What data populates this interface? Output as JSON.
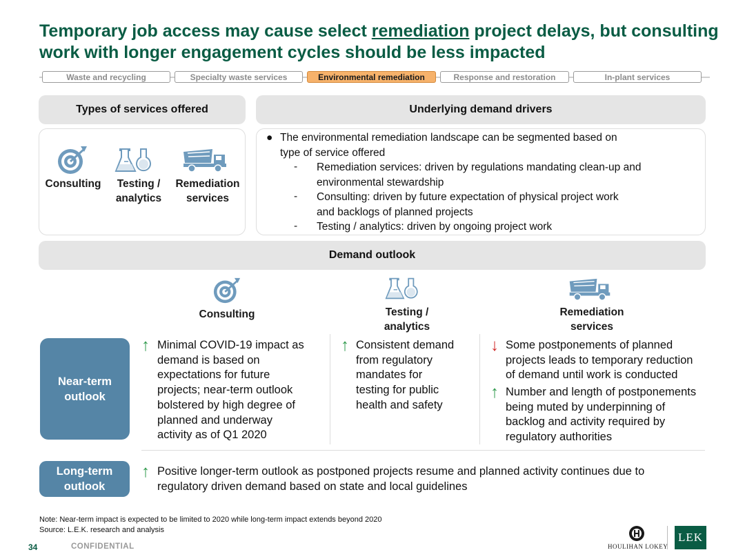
{
  "title": {
    "part1": "Temporary job access may cause select ",
    "underlined": "remediation",
    "part2": " project delays, but consulting work with longer engagement cycles should be less impacted"
  },
  "tabs": [
    {
      "label": "Waste and recycling",
      "active": false
    },
    {
      "label": "Specialty waste services",
      "active": false
    },
    {
      "label": "Environmental remediation",
      "active": true
    },
    {
      "label": "Response and restoration",
      "active": false
    },
    {
      "label": "In-plant services",
      "active": false
    }
  ],
  "services": {
    "header": "Types of services offered",
    "items": [
      {
        "icon": "target-icon",
        "label1": "Consulting",
        "label2": ""
      },
      {
        "icon": "lab-flask-icon",
        "label1": "Testing /",
        "label2": "analytics"
      },
      {
        "icon": "dump-truck-icon",
        "label1": "Remediation",
        "label2": "services"
      }
    ]
  },
  "drivers": {
    "header": "Underlying demand drivers",
    "bullet_line1": "The environmental remediation landscape can be segmented based on",
    "bullet_line2": "type of service offered",
    "subs": [
      {
        "line1": "Remediation services: driven by regulations mandating clean-up and",
        "line2": "environmental stewardship"
      },
      {
        "line1": "Consulting: driven by future expectation of physical project work",
        "line2": "and backlogs of planned projects"
      },
      {
        "line1": "Testing / analytics: driven by ongoing project work",
        "line2": ""
      }
    ]
  },
  "outlook": {
    "header": "Demand outlook",
    "columns": [
      {
        "icon": "target-icon",
        "line1": "Consulting",
        "line2": ""
      },
      {
        "icon": "lab-flask-icon",
        "line1": "Testing /",
        "line2": "analytics"
      },
      {
        "icon": "dump-truck-icon",
        "line1": "Remediation",
        "line2": "services"
      }
    ],
    "near_term": {
      "label1": "Near-term",
      "label2": "outlook",
      "consulting": [
        "Minimal COVID-19 impact as",
        "demand is based on",
        "expectations for future",
        "projects; near-term outlook",
        "bolstered by high degree of",
        "planned and underway",
        "activity as of Q1 2020"
      ],
      "testing": [
        "Consistent demand",
        "from regulatory",
        "mandates for",
        "testing for public",
        "health and safety"
      ],
      "remediation_down": [
        "Some postponements of planned",
        "projects leads to temporary reduction",
        "of demand until work is conducted"
      ],
      "remediation_up": [
        "Number and length of postponements",
        "being muted by underpinning of",
        "backlog and activity required by",
        "regulatory authorities"
      ]
    },
    "long_term": {
      "label1": "Long-term",
      "label2": "outlook",
      "lines": [
        "Positive longer-term outlook as postponed projects resume and planned activity continues due to",
        "regulatory driven demand based on state and local guidelines"
      ]
    }
  },
  "notes": {
    "note": "Note: Near-term impact is expected to be limited to 2020 while long-term impact extends beyond 2020",
    "source": "Source:  L.E.K. research and analysis"
  },
  "footer": {
    "page_number": "34",
    "confidential": "CONFIDENTIAL",
    "logo1": "HOULIHAN LOKEY",
    "logo2": "LEK"
  },
  "colors": {
    "title_green": "#0a5c44",
    "active_tab": "#f6b26b",
    "outlook_blue": "#5585a6",
    "arrow_up": "#2f9a4c",
    "arrow_down": "#d02626"
  }
}
